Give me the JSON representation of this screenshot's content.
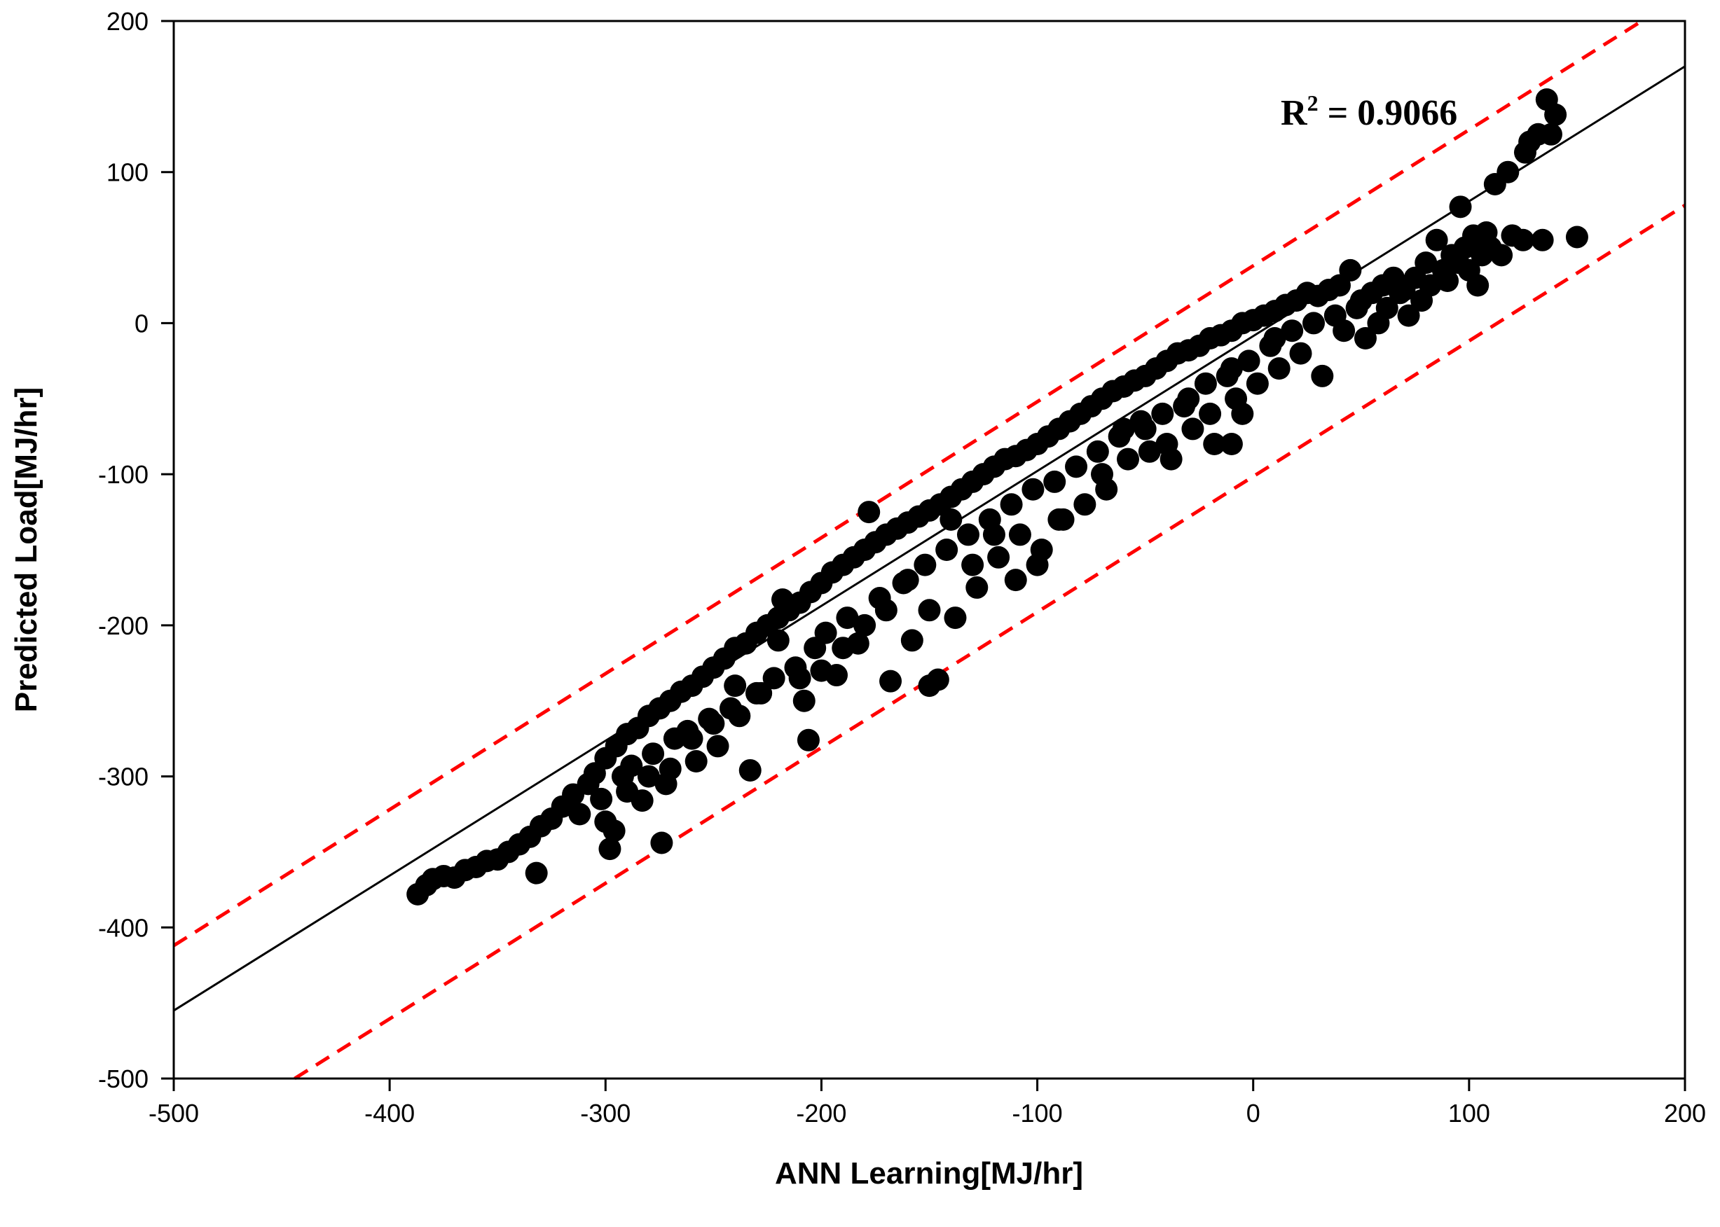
{
  "chart_data": {
    "type": "scatter",
    "xlabel": "ANN Learning[MJ/hr]",
    "ylabel": "Predicted Load[MJ/hr]",
    "xlim": [
      -500,
      200
    ],
    "ylim": [
      -500,
      200
    ],
    "xticks": [
      -500,
      -400,
      -300,
      -200,
      -100,
      0,
      100,
      200
    ],
    "yticks": [
      -500,
      -400,
      -300,
      -200,
      -100,
      0,
      100,
      200
    ],
    "xtick_labels": [
      "-500",
      "-400",
      "-300",
      "-200",
      "-100",
      "0",
      "100",
      "200"
    ],
    "ytick_labels": [
      "-500",
      "-400",
      "-300",
      "-200",
      "-100",
      "0",
      "100",
      "200"
    ],
    "grid": false,
    "annotation": {
      "text_base": "R",
      "text_sup": "2",
      "text_rest": " = 0.9066"
    },
    "fit_line": {
      "x": [
        -500,
        200
      ],
      "y": [
        -455,
        170
      ],
      "color": "#000000"
    },
    "bound_lines": [
      {
        "x": [
          -500,
          180
        ],
        "y": [
          -412,
          200
        ],
        "color": "#ff0000",
        "style": "dashed"
      },
      {
        "x": [
          -444,
          200
        ],
        "y": [
          -500,
          78
        ],
        "color": "#ff0000",
        "style": "dashed"
      }
    ],
    "series": [
      {
        "color": "#000000",
        "points": [
          [
            -387,
            -378
          ],
          [
            -383,
            -372
          ],
          [
            -380,
            -368
          ],
          [
            -375,
            -366
          ],
          [
            -370,
            -367
          ],
          [
            -365,
            -362
          ],
          [
            -360,
            -360
          ],
          [
            -355,
            -356
          ],
          [
            -350,
            -355
          ],
          [
            -345,
            -350
          ],
          [
            -340,
            -345
          ],
          [
            -335,
            -340
          ],
          [
            -332,
            -364
          ],
          [
            -330,
            -333
          ],
          [
            -325,
            -328
          ],
          [
            -320,
            -320
          ],
          [
            -315,
            -312
          ],
          [
            -312,
            -325
          ],
          [
            -308,
            -305
          ],
          [
            -305,
            -298
          ],
          [
            -302,
            -315
          ],
          [
            -300,
            -288
          ],
          [
            -298,
            -348
          ],
          [
            -296,
            -336
          ],
          [
            -295,
            -280
          ],
          [
            -292,
            -300
          ],
          [
            -290,
            -272
          ],
          [
            -288,
            -293
          ],
          [
            -285,
            -268
          ],
          [
            -283,
            -316
          ],
          [
            -280,
            -260
          ],
          [
            -278,
            -285
          ],
          [
            -275,
            -255
          ],
          [
            -274,
            -344
          ],
          [
            -272,
            -305
          ],
          [
            -270,
            -250
          ],
          [
            -268,
            -275
          ],
          [
            -265,
            -244
          ],
          [
            -262,
            -270
          ],
          [
            -260,
            -240
          ],
          [
            -258,
            -290
          ],
          [
            -255,
            -234
          ],
          [
            -252,
            -262
          ],
          [
            -250,
            -228
          ],
          [
            -248,
            -280
          ],
          [
            -245,
            -222
          ],
          [
            -242,
            -255
          ],
          [
            -240,
            -215
          ],
          [
            -238,
            -260
          ],
          [
            -235,
            -212
          ],
          [
            -233,
            -296
          ],
          [
            -230,
            -205
          ],
          [
            -228,
            -245
          ],
          [
            -225,
            -200
          ],
          [
            -222,
            -235
          ],
          [
            -220,
            -195
          ],
          [
            -218,
            -183
          ],
          [
            -215,
            -190
          ],
          [
            -212,
            -228
          ],
          [
            -210,
            -185
          ],
          [
            -208,
            -250
          ],
          [
            -206,
            -276
          ],
          [
            -205,
            -178
          ],
          [
            -203,
            -215
          ],
          [
            -200,
            -172
          ],
          [
            -198,
            -205
          ],
          [
            -195,
            -165
          ],
          [
            -193,
            -233
          ],
          [
            -190,
            -160
          ],
          [
            -188,
            -195
          ],
          [
            -185,
            -155
          ],
          [
            -183,
            -212
          ],
          [
            -180,
            -150
          ],
          [
            -178,
            -125
          ],
          [
            -175,
            -145
          ],
          [
            -173,
            -182
          ],
          [
            -170,
            -140
          ],
          [
            -168,
            -237
          ],
          [
            -165,
            -136
          ],
          [
            -162,
            -172
          ],
          [
            -160,
            -132
          ],
          [
            -158,
            -210
          ],
          [
            -155,
            -128
          ],
          [
            -152,
            -160
          ],
          [
            -150,
            -124
          ],
          [
            -150,
            -240
          ],
          [
            -146,
            -236
          ],
          [
            -145,
            -120
          ],
          [
            -142,
            -150
          ],
          [
            -140,
            -115
          ],
          [
            -138,
            -195
          ],
          [
            -135,
            -110
          ],
          [
            -132,
            -140
          ],
          [
            -130,
            -105
          ],
          [
            -128,
            -175
          ],
          [
            -125,
            -100
          ],
          [
            -122,
            -130
          ],
          [
            -120,
            -95
          ],
          [
            -118,
            -155
          ],
          [
            -115,
            -90
          ],
          [
            -112,
            -120
          ],
          [
            -110,
            -88
          ],
          [
            -108,
            -140
          ],
          [
            -105,
            -84
          ],
          [
            -102,
            -110
          ],
          [
            -100,
            -80
          ],
          [
            -98,
            -150
          ],
          [
            -95,
            -75
          ],
          [
            -92,
            -105
          ],
          [
            -90,
            -70
          ],
          [
            -88,
            -130
          ],
          [
            -85,
            -65
          ],
          [
            -82,
            -95
          ],
          [
            -80,
            -60
          ],
          [
            -78,
            -120
          ],
          [
            -75,
            -55
          ],
          [
            -72,
            -85
          ],
          [
            -70,
            -50
          ],
          [
            -68,
            -110
          ],
          [
            -65,
            -45
          ],
          [
            -62,
            -75
          ],
          [
            -60,
            -42
          ],
          [
            -58,
            -90
          ],
          [
            -55,
            -38
          ],
          [
            -52,
            -65
          ],
          [
            -50,
            -35
          ],
          [
            -48,
            -85
          ],
          [
            -45,
            -30
          ],
          [
            -42,
            -60
          ],
          [
            -40,
            -25
          ],
          [
            -38,
            -90
          ],
          [
            -35,
            -20
          ],
          [
            -32,
            -55
          ],
          [
            -30,
            -18
          ],
          [
            -28,
            -70
          ],
          [
            -25,
            -15
          ],
          [
            -22,
            -40
          ],
          [
            -20,
            -10
          ],
          [
            -18,
            -80
          ],
          [
            -15,
            -8
          ],
          [
            -12,
            -35
          ],
          [
            -10,
            -5
          ],
          [
            -8,
            -50
          ],
          [
            -5,
            0
          ],
          [
            -2,
            -25
          ],
          [
            0,
            2
          ],
          [
            2,
            -40
          ],
          [
            5,
            5
          ],
          [
            8,
            -15
          ],
          [
            10,
            8
          ],
          [
            12,
            -30
          ],
          [
            15,
            12
          ],
          [
            18,
            -5
          ],
          [
            20,
            15
          ],
          [
            22,
            -20
          ],
          [
            25,
            20
          ],
          [
            28,
            0
          ],
          [
            30,
            18
          ],
          [
            32,
            -35
          ],
          [
            35,
            22
          ],
          [
            38,
            5
          ],
          [
            40,
            25
          ],
          [
            42,
            -5
          ],
          [
            45,
            35
          ],
          [
            48,
            10
          ],
          [
            50,
            15
          ],
          [
            52,
            -10
          ],
          [
            55,
            20
          ],
          [
            58,
            0
          ],
          [
            60,
            25
          ],
          [
            62,
            10
          ],
          [
            65,
            30
          ],
          [
            68,
            20
          ],
          [
            70,
            22
          ],
          [
            72,
            5
          ],
          [
            75,
            30
          ],
          [
            78,
            15
          ],
          [
            80,
            40
          ],
          [
            82,
            25
          ],
          [
            85,
            55
          ],
          [
            88,
            35
          ],
          [
            90,
            28
          ],
          [
            92,
            45
          ],
          [
            95,
            40
          ],
          [
            96,
            77
          ],
          [
            98,
            50
          ],
          [
            100,
            35
          ],
          [
            102,
            58
          ],
          [
            104,
            25
          ],
          [
            106,
            45
          ],
          [
            108,
            60
          ],
          [
            110,
            50
          ],
          [
            112,
            92
          ],
          [
            115,
            45
          ],
          [
            118,
            100
          ],
          [
            120,
            58
          ],
          [
            125,
            55
          ],
          [
            126,
            113
          ],
          [
            128,
            120
          ],
          [
            132,
            125
          ],
          [
            134,
            55
          ],
          [
            136,
            148
          ],
          [
            138,
            125
          ],
          [
            140,
            138
          ],
          [
            150,
            57
          ],
          [
            -60,
            -70
          ],
          [
            -40,
            -80
          ],
          [
            -20,
            -60
          ],
          [
            -100,
            -160
          ],
          [
            -120,
            -140
          ],
          [
            -140,
            -130
          ],
          [
            -160,
            -170
          ],
          [
            -180,
            -200
          ],
          [
            -200,
            -230
          ],
          [
            -220,
            -210
          ],
          [
            -240,
            -240
          ],
          [
            -260,
            -275
          ],
          [
            -280,
            -300
          ],
          [
            -300,
            -330
          ],
          [
            -90,
            -130
          ],
          [
            -70,
            -100
          ],
          [
            -50,
            -70
          ],
          [
            -30,
            -50
          ],
          [
            -10,
            -30
          ],
          [
            10,
            -10
          ],
          [
            -10,
            -80
          ],
          [
            -5,
            -60
          ],
          [
            -110,
            -170
          ],
          [
            -130,
            -160
          ],
          [
            -150,
            -190
          ],
          [
            -170,
            -190
          ],
          [
            -190,
            -215
          ],
          [
            -210,
            -235
          ],
          [
            -230,
            -245
          ],
          [
            -250,
            -265
          ],
          [
            -270,
            -295
          ],
          [
            -290,
            -310
          ]
        ]
      }
    ]
  }
}
